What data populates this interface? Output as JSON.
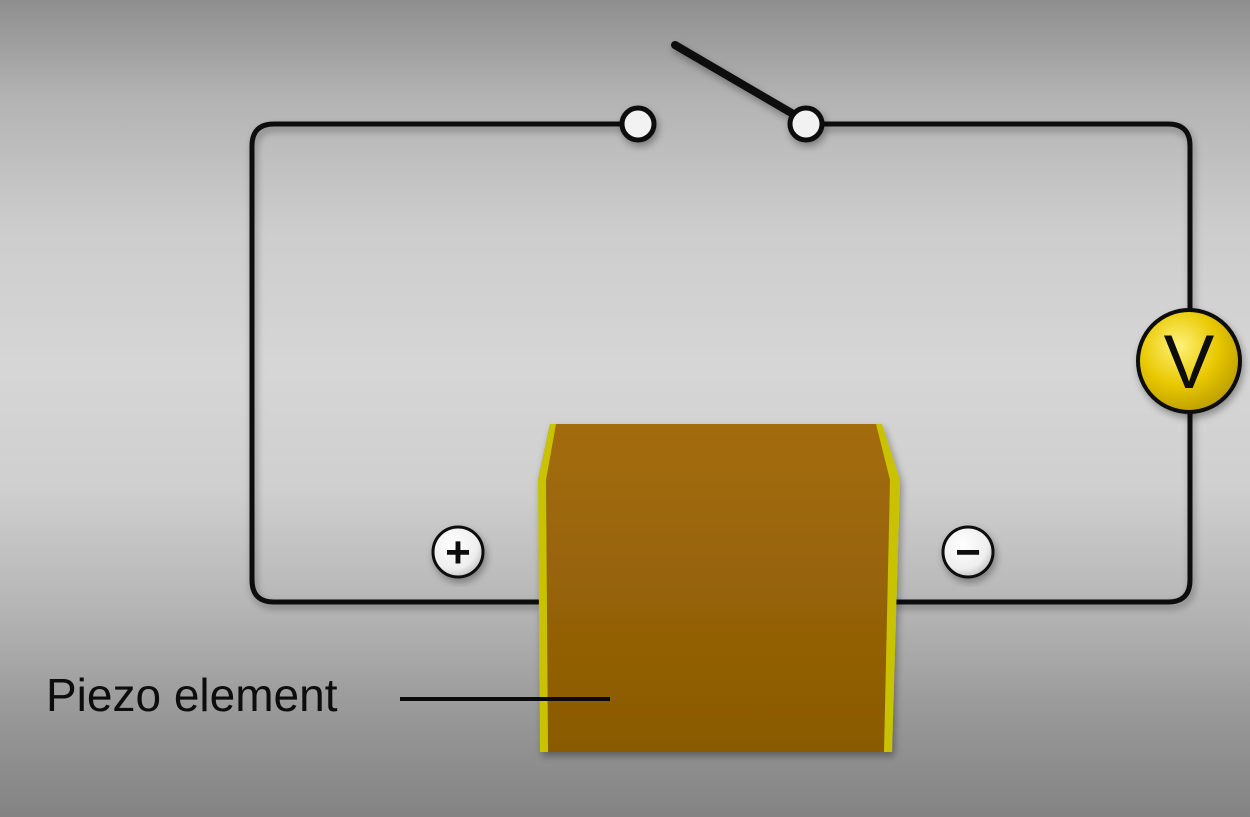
{
  "labels": {
    "piezo_element": "Piezo element",
    "voltmeter_symbol": "V",
    "positive_terminal": "+",
    "negative_terminal": "−"
  },
  "switch": {
    "state": "open"
  },
  "colors": {
    "wire": "#0a0a0a",
    "piezo_body": "#8f5e05",
    "piezo_electrode": "#c9c200",
    "voltmeter_fill": "#e8c800",
    "background": "#d6d6d6"
  }
}
